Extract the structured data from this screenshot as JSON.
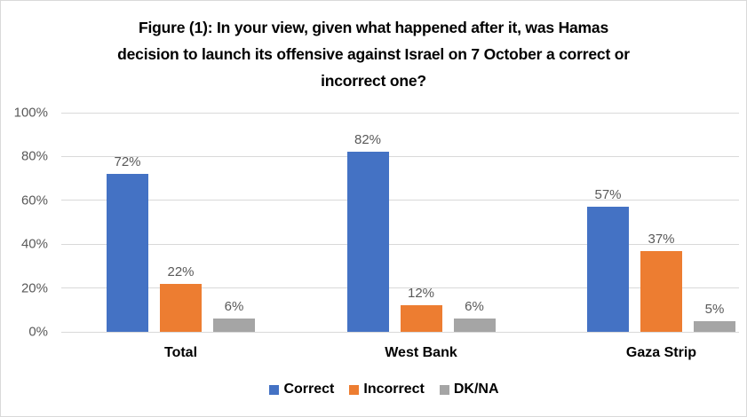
{
  "chart": {
    "background": "#FFFFFF",
    "border_color": "#D9D9D9"
  },
  "chart_data": {
    "type": "bar",
    "title": "Figure (1): In your view, given what happened after it, was Hamas decision to launch its offensive against Israel on 7 October a correct or incorrect one?",
    "title_lines": [
      "Figure (1): In your view, given what happened after it, was Hamas",
      "decision to launch its offensive against Israel on 7 October a correct or",
      "incorrect one?"
    ],
    "categories": [
      "Total",
      "West Bank",
      "Gaza Strip"
    ],
    "series": [
      {
        "name": "Correct",
        "color": "#4472C4",
        "values": [
          72,
          82,
          57
        ]
      },
      {
        "name": "Incorrect",
        "color": "#ED7D31",
        "values": [
          22,
          12,
          37
        ]
      },
      {
        "name": "DK/NA",
        "color": "#A5A5A5",
        "values": [
          6,
          6,
          5
        ]
      }
    ],
    "value_suffix": "%",
    "y_tick_labels": [
      "0%",
      "20%",
      "40%",
      "60%",
      "80%",
      "100%"
    ],
    "y_tick_values": [
      0,
      20,
      40,
      60,
      80,
      100
    ],
    "ylim": [
      0,
      100
    ],
    "xlabel": "",
    "ylabel": "",
    "grid": true,
    "grid_color": "#D9D9D9",
    "axis_text_color": "#595959",
    "value_label_color": "#595959",
    "legend_position": "bottom"
  }
}
